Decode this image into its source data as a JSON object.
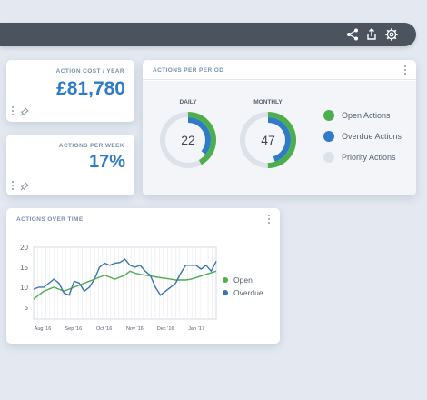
{
  "toolbar": {
    "icons": [
      "share-icon",
      "export-icon",
      "gear-icon"
    ]
  },
  "kpi_cost": {
    "title": "ACTION COST / YEAR",
    "value": "£81,780"
  },
  "kpi_week": {
    "title": "ACTIONS PER WEEK",
    "value": "17%"
  },
  "period": {
    "title": "ACTIONS PER PERIOD",
    "daily": {
      "label": "DAILY",
      "value": "22",
      "open_fraction": 0.42,
      "overdue_fraction": 0.36
    },
    "monthly": {
      "label": "MONTHLY",
      "value": "47",
      "open_fraction": 0.5,
      "overdue_fraction": 0.45
    },
    "legend": [
      {
        "label": "Open Actions",
        "color": "#4cae4c"
      },
      {
        "label": "Overdue Actions",
        "color": "#2f7bc8"
      },
      {
        "label": "Priority Actions",
        "color": "#dde2ea"
      }
    ]
  },
  "overtime": {
    "title": "ACTIONS OVER TIME",
    "legend": [
      {
        "label": "Open",
        "color": "#4cae4c"
      },
      {
        "label": "Overdue",
        "color": "#3a75b0"
      }
    ]
  },
  "chart_data": {
    "type": "line",
    "xlabel": "",
    "ylabel": "",
    "ylim": [
      2,
      20
    ],
    "yticks": [
      5,
      10,
      15,
      20
    ],
    "x_ticks": [
      "Aug '16",
      "Sep '16",
      "Oct '16",
      "Nov '16",
      "Dec '16",
      "Jan '17"
    ],
    "grid": true,
    "legend_placement": "right",
    "series": [
      {
        "name": "Open",
        "color": "#4cae4c",
        "values": [
          7,
          8,
          9,
          9.5,
          10,
          9.5,
          9,
          9.5,
          10,
          10.5,
          11,
          11.5,
          12,
          12.5,
          13,
          12.5,
          12,
          12.5,
          13,
          14,
          13.5,
          13.2,
          13,
          12.8,
          12.6,
          12.4,
          12.2,
          12,
          11.8,
          11.8,
          11.8,
          12,
          12.4,
          12.8,
          13.2,
          13.6,
          14
        ]
      },
      {
        "name": "Overdue",
        "color": "#3a75b0",
        "values": [
          9.5,
          10,
          10,
          11,
          12,
          11,
          8.5,
          8,
          11.5,
          11,
          9,
          10,
          12,
          15,
          16,
          15.5,
          16,
          16.2,
          17,
          15.5,
          15,
          15.5,
          14,
          13,
          10,
          8,
          9,
          10,
          11,
          13.5,
          15.5,
          15.5,
          15.5,
          14.5,
          15.5,
          14,
          16.5
        ]
      }
    ]
  }
}
